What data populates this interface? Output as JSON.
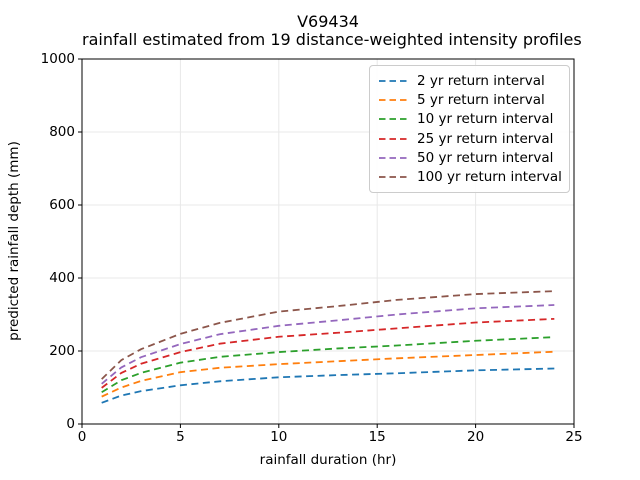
{
  "title_line1": "V69434",
  "title_line2": "rainfall estimated from 19 distance-weighted intensity profiles",
  "chart_data": {
    "type": "line",
    "title": "V69434",
    "subtitle": "rainfall estimated from 19 distance-weighted intensity profiles",
    "xlabel": "rainfall duration (hr)",
    "ylabel": "predicted rainfall depth (mm)",
    "xlim": [
      0,
      25
    ],
    "ylim": [
      0,
      1000
    ],
    "xticks": [
      0,
      5,
      10,
      15,
      20,
      25
    ],
    "yticks": [
      0,
      200,
      400,
      600,
      800,
      1000
    ],
    "grid": true,
    "grid_color": "#e8e8e8",
    "legend_position": "upper right",
    "line_style": "dashed",
    "x": [
      1,
      2,
      3,
      5,
      7,
      10,
      13,
      16,
      20,
      24
    ],
    "series": [
      {
        "name": "2 yr return interval",
        "color": "#1f77b4",
        "values": [
          58,
          78,
          90,
          106,
          117,
          128,
          134,
          139,
          147,
          152
        ]
      },
      {
        "name": "5 yr return interval",
        "color": "#ff7f0e",
        "values": [
          75,
          100,
          118,
          142,
          154,
          164,
          172,
          180,
          189,
          198
        ]
      },
      {
        "name": "10 yr return interval",
        "color": "#2ca02c",
        "values": [
          87,
          120,
          140,
          168,
          184,
          197,
          207,
          215,
          228,
          238
        ]
      },
      {
        "name": "25 yr return interval",
        "color": "#d62728",
        "values": [
          99,
          140,
          165,
          197,
          220,
          239,
          250,
          262,
          278,
          288
        ]
      },
      {
        "name": "50 yr return interval",
        "color": "#9467bd",
        "values": [
          110,
          155,
          183,
          219,
          246,
          269,
          284,
          300,
          317,
          326
        ]
      },
      {
        "name": "100 yr return interval",
        "color": "#8c564b",
        "values": [
          123,
          175,
          205,
          247,
          277,
          308,
          323,
          340,
          356,
          364
        ]
      }
    ]
  }
}
